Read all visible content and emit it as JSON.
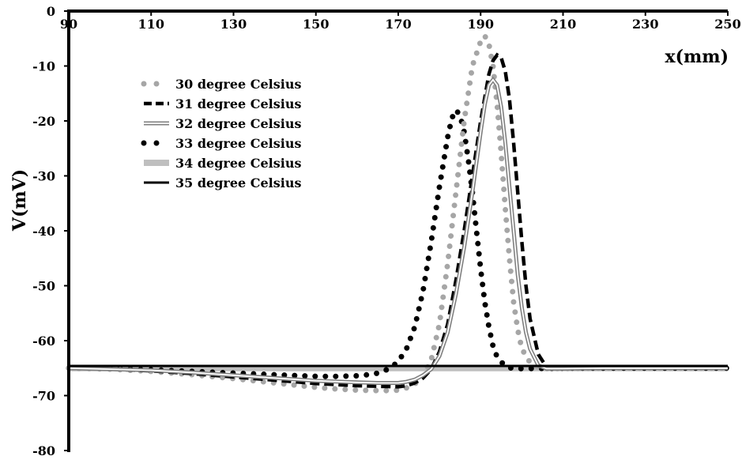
{
  "chart_data": {
    "type": "line",
    "xlabel": "x(mm)",
    "ylabel": "V(mV)",
    "xlim": [
      90,
      250
    ],
    "ylim": [
      -80,
      0
    ],
    "x_ticks": [
      90,
      110,
      130,
      150,
      170,
      190,
      210,
      230,
      250
    ],
    "y_ticks": [
      0,
      -10,
      -20,
      -30,
      -40,
      -50,
      -60,
      -70,
      -80
    ],
    "grid": false,
    "legend_position": "top-left",
    "series": [
      {
        "name": "30 degree Celsius",
        "color": "#a6a6a6",
        "style": "dotted-round",
        "x": [
          90,
          100,
          110,
          120,
          130,
          140,
          145,
          150,
          155,
          160,
          165,
          168,
          170,
          172,
          174,
          176,
          178,
          180,
          182,
          184,
          186,
          188,
          190,
          191,
          192,
          193,
          194,
          195,
          196,
          197,
          198,
          199,
          200,
          202,
          204,
          206,
          210,
          220,
          230,
          240,
          250
        ],
        "y": [
          -65,
          -65.2,
          -65.6,
          -66.2,
          -66.9,
          -67.7,
          -68.1,
          -68.5,
          -68.8,
          -69,
          -69.1,
          -69.1,
          -69,
          -68.6,
          -67.9,
          -66.5,
          -63.5,
          -57,
          -46,
          -33,
          -20,
          -10,
          -5.5,
          -4.5,
          -6,
          -10,
          -17,
          -26,
          -36,
          -45,
          -53,
          -58,
          -61.5,
          -64,
          -64.9,
          -65.1,
          -65.1,
          -65,
          -65,
          -65,
          -65
        ]
      },
      {
        "name": "31 degree Celsius",
        "color": "#000000",
        "style": "dashed",
        "x": [
          90,
          100,
          110,
          120,
          130,
          140,
          150,
          160,
          165,
          170,
          172,
          174,
          176,
          178,
          180,
          182,
          184,
          186,
          188,
          190,
          192,
          193,
          194,
          195,
          196,
          197,
          198,
          199,
          200,
          201,
          202,
          204,
          206,
          210,
          220,
          230,
          240,
          250
        ],
        "y": [
          -65,
          -65.2,
          -65.5,
          -66,
          -66.6,
          -67.2,
          -67.8,
          -68.2,
          -68.3,
          -68.4,
          -68.2,
          -67.7,
          -66.8,
          -65.2,
          -62,
          -57,
          -49,
          -40,
          -30,
          -20,
          -11.5,
          -9,
          -8,
          -8.5,
          -11,
          -16,
          -24,
          -33,
          -42,
          -50,
          -56,
          -62.5,
          -64.8,
          -65.1,
          -65,
          -65,
          -65,
          -65
        ]
      },
      {
        "name": "32 degree Celsius",
        "color": "#808080",
        "style": "double",
        "x": [
          90,
          100,
          110,
          120,
          130,
          140,
          150,
          160,
          165,
          170,
          172,
          174,
          176,
          178,
          180,
          182,
          184,
          186,
          188,
          190,
          191,
          192,
          193,
          194,
          195,
          196,
          197,
          198,
          199,
          200,
          201,
          202,
          204,
          206,
          210,
          220,
          230,
          240,
          250
        ],
        "y": [
          -65,
          -65.2,
          -65.4,
          -65.8,
          -66.3,
          -66.8,
          -67.3,
          -67.6,
          -67.7,
          -67.7,
          -67.5,
          -67.1,
          -66.3,
          -65.2,
          -62.8,
          -58.5,
          -51.5,
          -43,
          -33,
          -22,
          -17,
          -13.5,
          -12.5,
          -13.5,
          -17.5,
          -24,
          -32,
          -40,
          -48,
          -54,
          -58.5,
          -61.5,
          -64.5,
          -65.1,
          -65.1,
          -65,
          -65,
          -65,
          -65
        ]
      },
      {
        "name": "33 degree Celsius",
        "color": "#000000",
        "style": "dotted-round",
        "x": [
          90,
          100,
          110,
          120,
          130,
          140,
          150,
          155,
          160,
          164,
          166,
          168,
          170,
          172,
          174,
          176,
          178,
          180,
          182,
          183,
          184,
          185,
          186,
          187,
          188,
          189,
          190,
          191,
          192,
          193,
          194,
          196,
          198,
          200,
          210,
          220,
          230,
          240,
          250
        ],
        "y": [
          -65,
          -65.1,
          -65.3,
          -65.6,
          -65.9,
          -66.2,
          -66.5,
          -66.5,
          -66.4,
          -66.1,
          -65.7,
          -65,
          -63.8,
          -61.5,
          -57.5,
          -51,
          -42,
          -32,
          -23,
          -19.5,
          -18,
          -19,
          -22,
          -27,
          -33,
          -40,
          -47,
          -53,
          -57.5,
          -61,
          -63,
          -64.7,
          -65.1,
          -65.1,
          -65,
          -65,
          -65,
          -65,
          -65
        ]
      },
      {
        "name": "34 degree Celsius",
        "color": "#bfbfbf",
        "style": "thick",
        "x": [
          90,
          250
        ],
        "y": [
          -65,
          -65
        ]
      },
      {
        "name": "35 degree Celsius",
        "color": "#000000",
        "style": "solid",
        "x": [
          90,
          250
        ],
        "y": [
          -64.6,
          -64.6
        ]
      }
    ]
  }
}
